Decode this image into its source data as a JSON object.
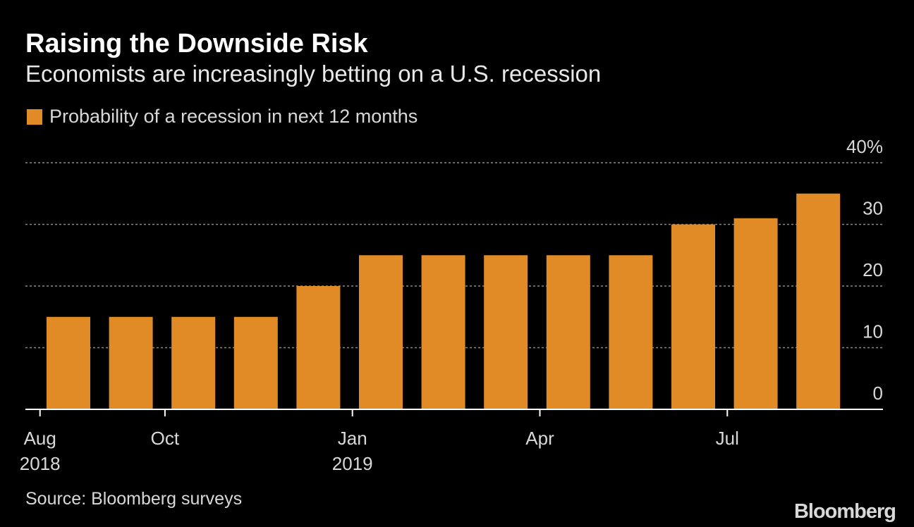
{
  "header": {
    "title": "Raising the Downside Risk",
    "subtitle": "Economists are increasingly betting on a U.S. recession"
  },
  "legend": {
    "label": "Probability of a recession in next 12 months"
  },
  "footer": {
    "source": "Source: Bloomberg surveys",
    "brand": "Bloomberg"
  },
  "colors": {
    "background": "#000000",
    "bar": "#e08b25",
    "gridline": "#8a8a8a",
    "axis": "#ffffff",
    "text": "#d8d8d8"
  },
  "chart_data": {
    "type": "bar",
    "categories": [
      "Aug 2018",
      "Sep 2018",
      "Oct 2018",
      "Nov 2018",
      "Dec 2018",
      "Jan 2019",
      "Feb 2019",
      "Mar 2019",
      "Apr 2019",
      "May 2019",
      "Jun 2019",
      "Jul 2019",
      "Aug 2019"
    ],
    "values": [
      15,
      15,
      15,
      15,
      20,
      25,
      25,
      25,
      25,
      25,
      30,
      31,
      35
    ],
    "ylim": [
      0,
      40
    ],
    "y_ticks": [
      {
        "value": 0,
        "label": "0"
      },
      {
        "value": 10,
        "label": "10"
      },
      {
        "value": 20,
        "label": "20"
      },
      {
        "value": 30,
        "label": "30"
      },
      {
        "value": 40,
        "label": "40%"
      }
    ],
    "x_labels": [
      {
        "index": 0,
        "month": "Aug",
        "year": "2018"
      },
      {
        "index": 2,
        "month": "Oct",
        "year": ""
      },
      {
        "index": 5,
        "month": "Jan",
        "year": "2019"
      },
      {
        "index": 8,
        "month": "Apr",
        "year": ""
      },
      {
        "index": 11,
        "month": "Jul",
        "year": ""
      }
    ],
    "grid": true,
    "y_axis_position": "right",
    "legend_position": "top-left"
  }
}
